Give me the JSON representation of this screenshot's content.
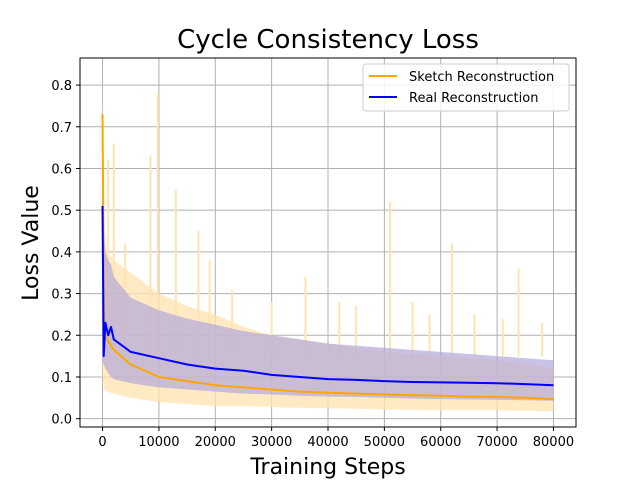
{
  "chart_data": {
    "type": "line",
    "title": "Cycle Consistency Loss",
    "xlabel": "Training Steps",
    "ylabel": "Loss Value",
    "xlim": [
      -4000,
      84000
    ],
    "ylim": [
      -0.02,
      0.865
    ],
    "xticks": [
      0,
      10000,
      20000,
      30000,
      40000,
      50000,
      60000,
      70000,
      80000
    ],
    "yticks": [
      0.0,
      0.1,
      0.2,
      0.3,
      0.4,
      0.5,
      0.6,
      0.7,
      0.8
    ],
    "grid": true,
    "legend_position": "top-right",
    "series": [
      {
        "name": "Sketch Reconstruction",
        "color": "#ffa500",
        "band_color": "#ffe3b0",
        "x": [
          0,
          300,
          800,
          2000,
          5000,
          10000,
          15000,
          20000,
          25000,
          30000,
          35000,
          40000,
          45000,
          50000,
          55000,
          60000,
          65000,
          70000,
          75000,
          80000
        ],
        "y": [
          0.73,
          0.2,
          0.19,
          0.165,
          0.13,
          0.1,
          0.09,
          0.08,
          0.075,
          0.07,
          0.065,
          0.062,
          0.06,
          0.058,
          0.056,
          0.055,
          0.053,
          0.052,
          0.05,
          0.047
        ],
        "upper": [
          0.83,
          0.45,
          0.4,
          0.38,
          0.35,
          0.3,
          0.27,
          0.25,
          0.22,
          0.2,
          0.19,
          0.18,
          0.17,
          0.16,
          0.155,
          0.15,
          0.145,
          0.14,
          0.13,
          0.12
        ],
        "lower": [
          0.1,
          0.07,
          0.065,
          0.06,
          0.05,
          0.04,
          0.035,
          0.03,
          0.03,
          0.028,
          0.026,
          0.025,
          0.024,
          0.022,
          0.021,
          0.02,
          0.02,
          0.02,
          0.019,
          0.018
        ],
        "spikes": [
          [
            1000,
            0.62
          ],
          [
            2000,
            0.66
          ],
          [
            4000,
            0.42
          ],
          [
            8500,
            0.63
          ],
          [
            9800,
            0.78
          ],
          [
            13000,
            0.55
          ],
          [
            17000,
            0.45
          ],
          [
            19000,
            0.38
          ],
          [
            23000,
            0.31
          ],
          [
            30000,
            0.28
          ],
          [
            36000,
            0.34
          ],
          [
            42000,
            0.28
          ],
          [
            45000,
            0.27
          ],
          [
            51000,
            0.52
          ],
          [
            55000,
            0.28
          ],
          [
            58000,
            0.25
          ],
          [
            62000,
            0.42
          ],
          [
            66000,
            0.25
          ],
          [
            71000,
            0.24
          ],
          [
            73800,
            0.36
          ],
          [
            78000,
            0.23
          ]
        ]
      },
      {
        "name": "Real Reconstruction",
        "color": "#0000ff",
        "band_color": "#b4a8d8",
        "x": [
          0,
          200,
          500,
          1000,
          1500,
          2000,
          5000,
          10000,
          15000,
          20000,
          25000,
          30000,
          35000,
          40000,
          45000,
          50000,
          55000,
          60000,
          65000,
          70000,
          75000,
          80000
        ],
        "y": [
          0.51,
          0.15,
          0.23,
          0.2,
          0.22,
          0.19,
          0.16,
          0.145,
          0.13,
          0.12,
          0.115,
          0.105,
          0.1,
          0.095,
          0.093,
          0.09,
          0.088,
          0.087,
          0.086,
          0.085,
          0.083,
          0.08
        ],
        "upper": [
          0.56,
          0.45,
          0.4,
          0.38,
          0.37,
          0.34,
          0.29,
          0.26,
          0.24,
          0.225,
          0.21,
          0.2,
          0.19,
          0.18,
          0.175,
          0.17,
          0.165,
          0.16,
          0.155,
          0.15,
          0.145,
          0.14
        ],
        "lower": [
          0.14,
          0.13,
          0.12,
          0.11,
          0.1,
          0.095,
          0.085,
          0.075,
          0.07,
          0.065,
          0.06,
          0.058,
          0.055,
          0.053,
          0.052,
          0.05,
          0.048,
          0.047,
          0.046,
          0.045,
          0.044,
          0.043
        ]
      }
    ]
  }
}
